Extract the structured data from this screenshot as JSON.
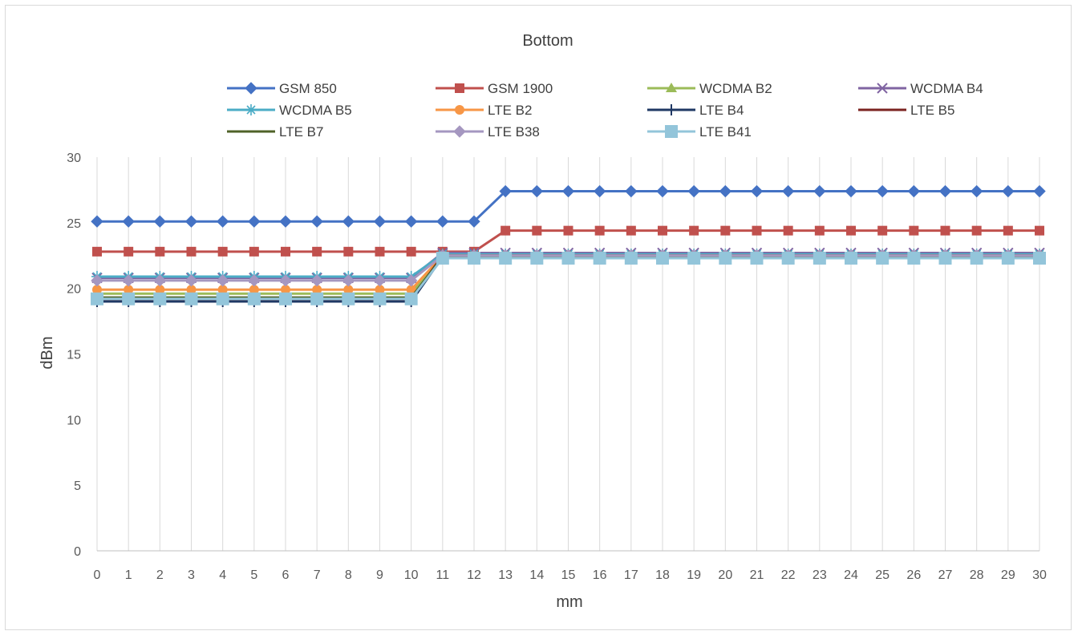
{
  "chart_data": {
    "type": "line",
    "title": "Bottom",
    "xlabel": "mm",
    "ylabel": "dBm",
    "x": [
      0,
      1,
      2,
      3,
      4,
      5,
      6,
      7,
      8,
      9,
      10,
      11,
      12,
      13,
      14,
      15,
      16,
      17,
      18,
      19,
      20,
      21,
      22,
      23,
      24,
      25,
      26,
      27,
      28,
      29,
      30
    ],
    "xticks": [
      "0",
      "1",
      "2",
      "3",
      "4",
      "5",
      "6",
      "7",
      "8",
      "9",
      "10",
      "11",
      "12",
      "13",
      "14",
      "15",
      "16",
      "17",
      "18",
      "19",
      "20",
      "21",
      "22",
      "23",
      "24",
      "25",
      "26",
      "27",
      "28",
      "29",
      "30"
    ],
    "ylim": [
      0,
      30
    ],
    "yticks": [
      "0",
      "5",
      "10",
      "15",
      "20",
      "25",
      "30"
    ],
    "grid": "vertical",
    "legend_position": "top",
    "series": [
      {
        "name": "GSM 850",
        "color": "#4472c4",
        "marker": "diamond",
        "values": [
          25.1,
          25.1,
          25.1,
          25.1,
          25.1,
          25.1,
          25.1,
          25.1,
          25.1,
          25.1,
          25.1,
          25.1,
          25.1,
          27.4,
          27.4,
          27.4,
          27.4,
          27.4,
          27.4,
          27.4,
          27.4,
          27.4,
          27.4,
          27.4,
          27.4,
          27.4,
          27.4,
          27.4,
          27.4,
          27.4,
          27.4
        ]
      },
      {
        "name": "GSM 1900",
        "color": "#c0504d",
        "marker": "square",
        "values": [
          22.8,
          22.8,
          22.8,
          22.8,
          22.8,
          22.8,
          22.8,
          22.8,
          22.8,
          22.8,
          22.8,
          22.8,
          22.8,
          24.4,
          24.4,
          24.4,
          24.4,
          24.4,
          24.4,
          24.4,
          24.4,
          24.4,
          24.4,
          24.4,
          24.4,
          24.4,
          24.4,
          24.4,
          24.4,
          24.4,
          24.4
        ]
      },
      {
        "name": "WCDMA B2",
        "color": "#9bbb59",
        "marker": "triangle",
        "values": [
          19.6,
          19.6,
          19.6,
          19.6,
          19.6,
          19.6,
          19.6,
          19.6,
          19.6,
          19.6,
          19.6,
          22.6,
          22.6,
          22.6,
          22.6,
          22.6,
          22.6,
          22.6,
          22.6,
          22.6,
          22.6,
          22.6,
          22.6,
          22.6,
          22.6,
          22.6,
          22.6,
          22.6,
          22.6,
          22.6,
          22.6
        ]
      },
      {
        "name": "WCDMA B4",
        "color": "#8064a2",
        "marker": "x",
        "values": [
          20.8,
          20.8,
          20.8,
          20.8,
          20.8,
          20.8,
          20.8,
          20.8,
          20.8,
          20.8,
          20.8,
          22.7,
          22.7,
          22.7,
          22.7,
          22.7,
          22.7,
          22.7,
          22.7,
          22.7,
          22.7,
          22.7,
          22.7,
          22.7,
          22.7,
          22.7,
          22.7,
          22.7,
          22.7,
          22.7,
          22.7
        ]
      },
      {
        "name": "WCDMA B5",
        "color": "#4bacc6",
        "marker": "star",
        "values": [
          20.9,
          20.9,
          20.9,
          20.9,
          20.9,
          20.9,
          20.9,
          20.9,
          20.9,
          20.9,
          20.9,
          22.6,
          22.6,
          22.6,
          22.6,
          22.6,
          22.6,
          22.6,
          22.6,
          22.6,
          22.6,
          22.6,
          22.6,
          22.6,
          22.6,
          22.6,
          22.6,
          22.6,
          22.6,
          22.6,
          22.6
        ]
      },
      {
        "name": "LTE B2",
        "color": "#f79646",
        "marker": "circle",
        "values": [
          19.9,
          19.9,
          19.9,
          19.9,
          19.9,
          19.9,
          19.9,
          19.9,
          19.9,
          19.9,
          19.9,
          22.5,
          22.5,
          22.5,
          22.5,
          22.5,
          22.5,
          22.5,
          22.5,
          22.5,
          22.5,
          22.5,
          22.5,
          22.5,
          22.5,
          22.5,
          22.5,
          22.5,
          22.5,
          22.5,
          22.5
        ]
      },
      {
        "name": "LTE B4",
        "color": "#1f3864",
        "marker": "plus",
        "values": [
          19.0,
          19.0,
          19.0,
          19.0,
          19.0,
          19.0,
          19.0,
          19.0,
          19.0,
          19.0,
          19.0,
          22.4,
          22.4,
          22.4,
          22.4,
          22.4,
          22.4,
          22.4,
          22.4,
          22.4,
          22.4,
          22.4,
          22.4,
          22.4,
          22.4,
          22.4,
          22.4,
          22.4,
          22.4,
          22.4,
          22.4
        ]
      },
      {
        "name": "LTE B5",
        "color": "#7b2320",
        "marker": "none",
        "values": [
          19.2,
          19.2,
          19.2,
          19.2,
          19.2,
          19.2,
          19.2,
          19.2,
          19.2,
          19.2,
          19.2,
          22.5,
          22.5,
          22.5,
          22.5,
          22.5,
          22.5,
          22.5,
          22.5,
          22.5,
          22.5,
          22.5,
          22.5,
          22.5,
          22.5,
          22.5,
          22.5,
          22.5,
          22.5,
          22.5,
          22.5
        ]
      },
      {
        "name": "LTE B7",
        "color": "#4f6228",
        "marker": "none",
        "values": [
          19.3,
          19.3,
          19.3,
          19.3,
          19.3,
          19.3,
          19.3,
          19.3,
          19.3,
          19.3,
          19.3,
          22.4,
          22.4,
          22.4,
          22.4,
          22.4,
          22.4,
          22.4,
          22.4,
          22.4,
          22.4,
          22.4,
          22.4,
          22.4,
          22.4,
          22.4,
          22.4,
          22.4,
          22.4,
          22.4,
          22.4
        ]
      },
      {
        "name": "LTE B38",
        "color": "#a597c0",
        "marker": "diamond",
        "values": [
          20.6,
          20.6,
          20.6,
          20.6,
          20.6,
          20.6,
          20.6,
          20.6,
          20.6,
          20.6,
          20.6,
          22.5,
          22.5,
          22.5,
          22.5,
          22.5,
          22.5,
          22.5,
          22.5,
          22.5,
          22.5,
          22.5,
          22.5,
          22.5,
          22.5,
          22.5,
          22.5,
          22.5,
          22.5,
          22.5,
          22.5
        ]
      },
      {
        "name": "LTE B41",
        "color": "#93c5da",
        "marker": "bigsquare",
        "values": [
          19.2,
          19.2,
          19.2,
          19.2,
          19.2,
          19.2,
          19.2,
          19.2,
          19.2,
          19.2,
          19.2,
          22.3,
          22.3,
          22.3,
          22.3,
          22.3,
          22.3,
          22.3,
          22.3,
          22.3,
          22.3,
          22.3,
          22.3,
          22.3,
          22.3,
          22.3,
          22.3,
          22.3,
          22.3,
          22.3,
          22.3
        ]
      }
    ]
  }
}
